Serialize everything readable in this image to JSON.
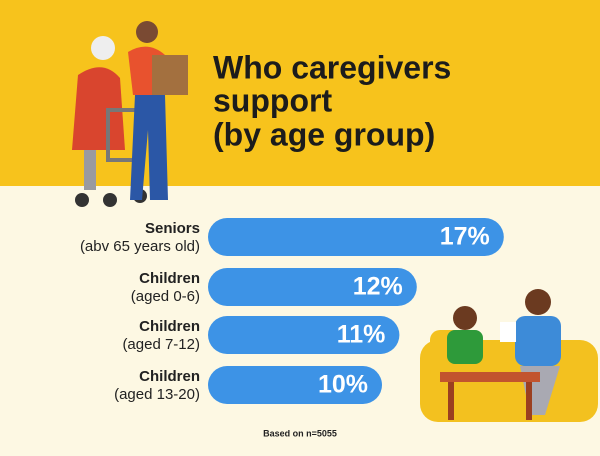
{
  "chart_data": {
    "type": "bar",
    "orientation": "horizontal",
    "title": [
      "Who caregivers",
      "support",
      "(by age group)"
    ],
    "categories": [
      "Seniors",
      "Children",
      "Children",
      "Children"
    ],
    "category_details": [
      "(abv 65 years old)",
      "(aged 0-6)",
      "(aged 7-12)",
      "(aged 13-20)"
    ],
    "values": [
      17,
      12,
      11,
      10
    ],
    "value_labels": [
      "17%",
      "12%",
      "11%",
      "10%"
    ],
    "color": "#3d93e6",
    "note": "Based on n=5055"
  }
}
